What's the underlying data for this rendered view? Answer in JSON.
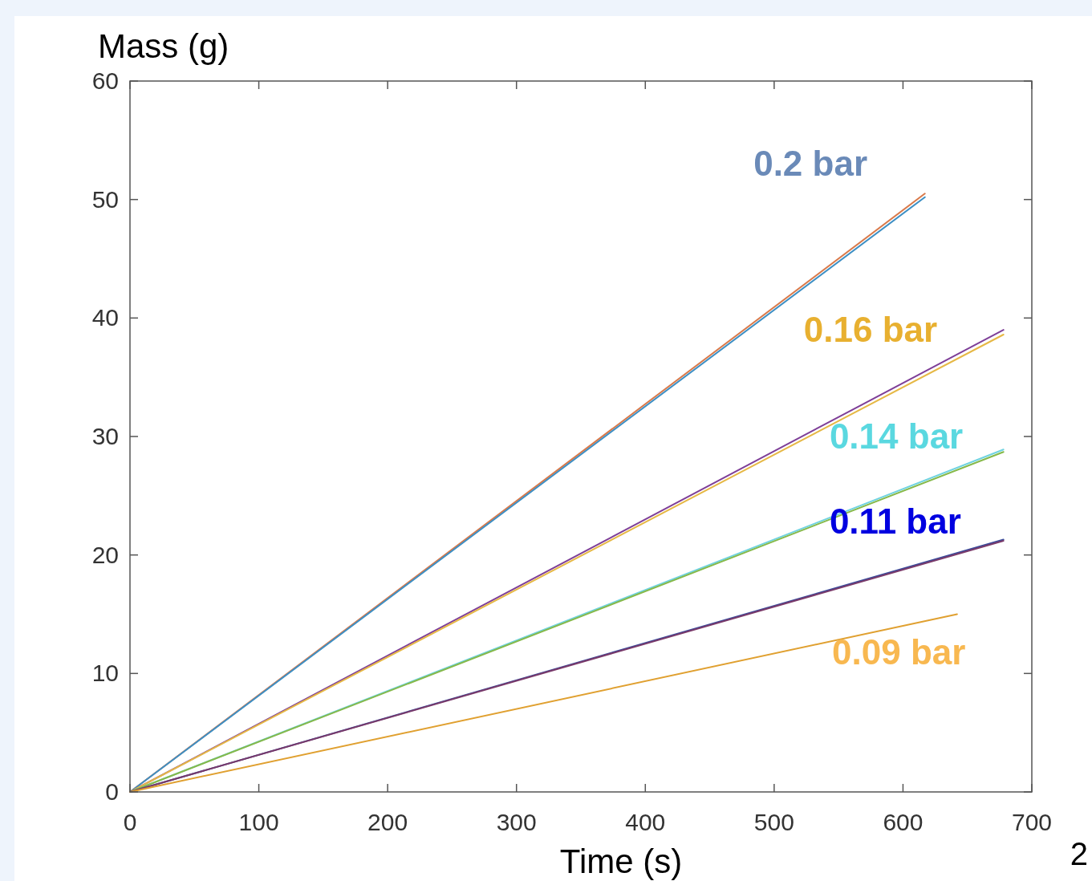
{
  "chart_data": {
    "type": "line",
    "xlabel": "Time (s)",
    "ylabel": "Mass (g)",
    "xlim": [
      0,
      700
    ],
    "ylim": [
      0,
      60
    ],
    "xticks": [
      0,
      100,
      200,
      300,
      400,
      500,
      600,
      700
    ],
    "yticks": [
      0,
      10,
      20,
      30,
      40,
      50,
      60
    ],
    "grid": false,
    "marker": "none",
    "line_style": "solid",
    "series": [
      {
        "color": "#d9794a",
        "x": [
          0,
          617
        ],
        "values": [
          0,
          50.5
        ]
      },
      {
        "color": "#3d8fc4",
        "x": [
          0,
          617
        ],
        "values": [
          0,
          50.2
        ]
      },
      {
        "color": "#7e3f98",
        "x": [
          0,
          678
        ],
        "values": [
          0,
          39.0
        ]
      },
      {
        "color": "#e6b845",
        "x": [
          0,
          678
        ],
        "values": [
          0,
          38.6
        ]
      },
      {
        "color": "#6fd3e0",
        "x": [
          0,
          678
        ],
        "values": [
          0,
          28.9
        ]
      },
      {
        "color": "#86b94a",
        "x": [
          0,
          678
        ],
        "values": [
          0,
          28.7
        ]
      },
      {
        "color": "#3a4a9a",
        "x": [
          0,
          678
        ],
        "values": [
          0,
          21.3
        ]
      },
      {
        "color": "#7a3a6a",
        "x": [
          0,
          678
        ],
        "values": [
          0,
          21.2
        ]
      },
      {
        "color": "#e0a030",
        "x": [
          0,
          642
        ],
        "values": [
          0,
          15.0
        ]
      }
    ],
    "annotations": [
      "0.2 bar",
      "0.16 bar",
      "0.14 bar",
      "0.11 bar",
      "0.09 bar",
      "2"
    ]
  }
}
